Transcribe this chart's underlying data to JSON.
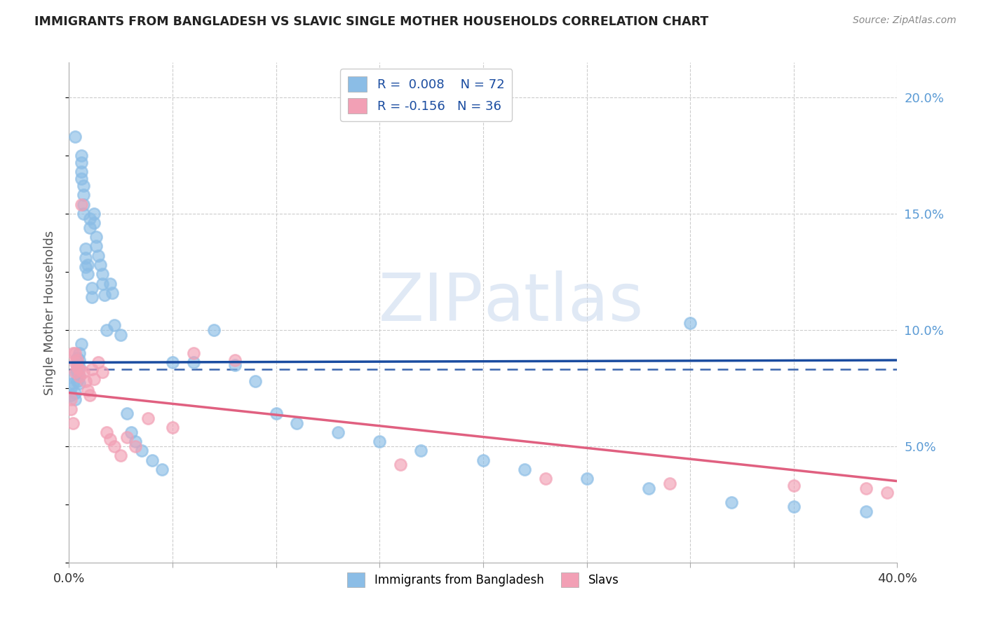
{
  "title": "IMMIGRANTS FROM BANGLADESH VS SLAVIC SINGLE MOTHER HOUSEHOLDS CORRELATION CHART",
  "source": "Source: ZipAtlas.com",
  "ylabel": "Single Mother Households",
  "xlim": [
    0.0,
    0.4
  ],
  "ylim": [
    0.0,
    0.215
  ],
  "right_yticks": [
    0.05,
    0.1,
    0.15,
    0.2
  ],
  "right_ytick_labels": [
    "5.0%",
    "10.0%",
    "15.0%",
    "20.0%"
  ],
  "legend_blue_label": "Immigrants from Bangladesh",
  "legend_pink_label": "Slavs",
  "R_blue": 0.008,
  "N_blue": 72,
  "R_pink": -0.156,
  "N_pink": 36,
  "blue_color": "#8BBDE6",
  "pink_color": "#F2A0B5",
  "line_blue_color": "#1A4CA0",
  "line_pink_color": "#E06080",
  "blue_line_y0": 0.086,
  "blue_line_y1": 0.087,
  "pink_line_y0": 0.073,
  "pink_line_y1": 0.035,
  "dashed_hline_y": 0.083,
  "dashed_hline_color": "#1A4CA0",
  "blue_x": [
    0.001,
    0.001,
    0.002,
    0.002,
    0.003,
    0.003,
    0.003,
    0.004,
    0.004,
    0.004,
    0.004,
    0.005,
    0.005,
    0.005,
    0.005,
    0.005,
    0.006,
    0.006,
    0.006,
    0.006,
    0.006,
    0.007,
    0.007,
    0.007,
    0.007,
    0.008,
    0.008,
    0.008,
    0.009,
    0.009,
    0.01,
    0.01,
    0.011,
    0.011,
    0.012,
    0.012,
    0.013,
    0.013,
    0.014,
    0.015,
    0.016,
    0.016,
    0.017,
    0.018,
    0.02,
    0.021,
    0.022,
    0.025,
    0.028,
    0.03,
    0.032,
    0.035,
    0.04,
    0.045,
    0.05,
    0.06,
    0.07,
    0.08,
    0.09,
    0.1,
    0.11,
    0.13,
    0.15,
    0.17,
    0.2,
    0.22,
    0.25,
    0.28,
    0.3,
    0.32,
    0.35,
    0.385
  ],
  "blue_y": [
    0.075,
    0.072,
    0.08,
    0.077,
    0.183,
    0.073,
    0.07,
    0.088,
    0.085,
    0.082,
    0.078,
    0.09,
    0.087,
    0.084,
    0.08,
    0.077,
    0.175,
    0.172,
    0.168,
    0.165,
    0.094,
    0.162,
    0.158,
    0.154,
    0.15,
    0.135,
    0.131,
    0.127,
    0.128,
    0.124,
    0.148,
    0.144,
    0.118,
    0.114,
    0.15,
    0.146,
    0.14,
    0.136,
    0.132,
    0.128,
    0.124,
    0.12,
    0.115,
    0.1,
    0.12,
    0.116,
    0.102,
    0.098,
    0.064,
    0.056,
    0.052,
    0.048,
    0.044,
    0.04,
    0.086,
    0.086,
    0.1,
    0.085,
    0.078,
    0.064,
    0.06,
    0.056,
    0.052,
    0.048,
    0.044,
    0.04,
    0.036,
    0.032,
    0.103,
    0.026,
    0.024,
    0.022
  ],
  "pink_x": [
    0.001,
    0.001,
    0.002,
    0.002,
    0.003,
    0.003,
    0.003,
    0.004,
    0.004,
    0.005,
    0.005,
    0.006,
    0.007,
    0.008,
    0.009,
    0.01,
    0.011,
    0.012,
    0.014,
    0.016,
    0.018,
    0.02,
    0.022,
    0.025,
    0.028,
    0.032,
    0.038,
    0.05,
    0.06,
    0.08,
    0.16,
    0.23,
    0.29,
    0.35,
    0.385,
    0.395
  ],
  "pink_y": [
    0.07,
    0.066,
    0.09,
    0.06,
    0.09,
    0.086,
    0.082,
    0.087,
    0.084,
    0.083,
    0.08,
    0.154,
    0.082,
    0.078,
    0.074,
    0.072,
    0.083,
    0.079,
    0.086,
    0.082,
    0.056,
    0.053,
    0.05,
    0.046,
    0.054,
    0.05,
    0.062,
    0.058,
    0.09,
    0.087,
    0.042,
    0.036,
    0.034,
    0.033,
    0.032,
    0.03
  ]
}
